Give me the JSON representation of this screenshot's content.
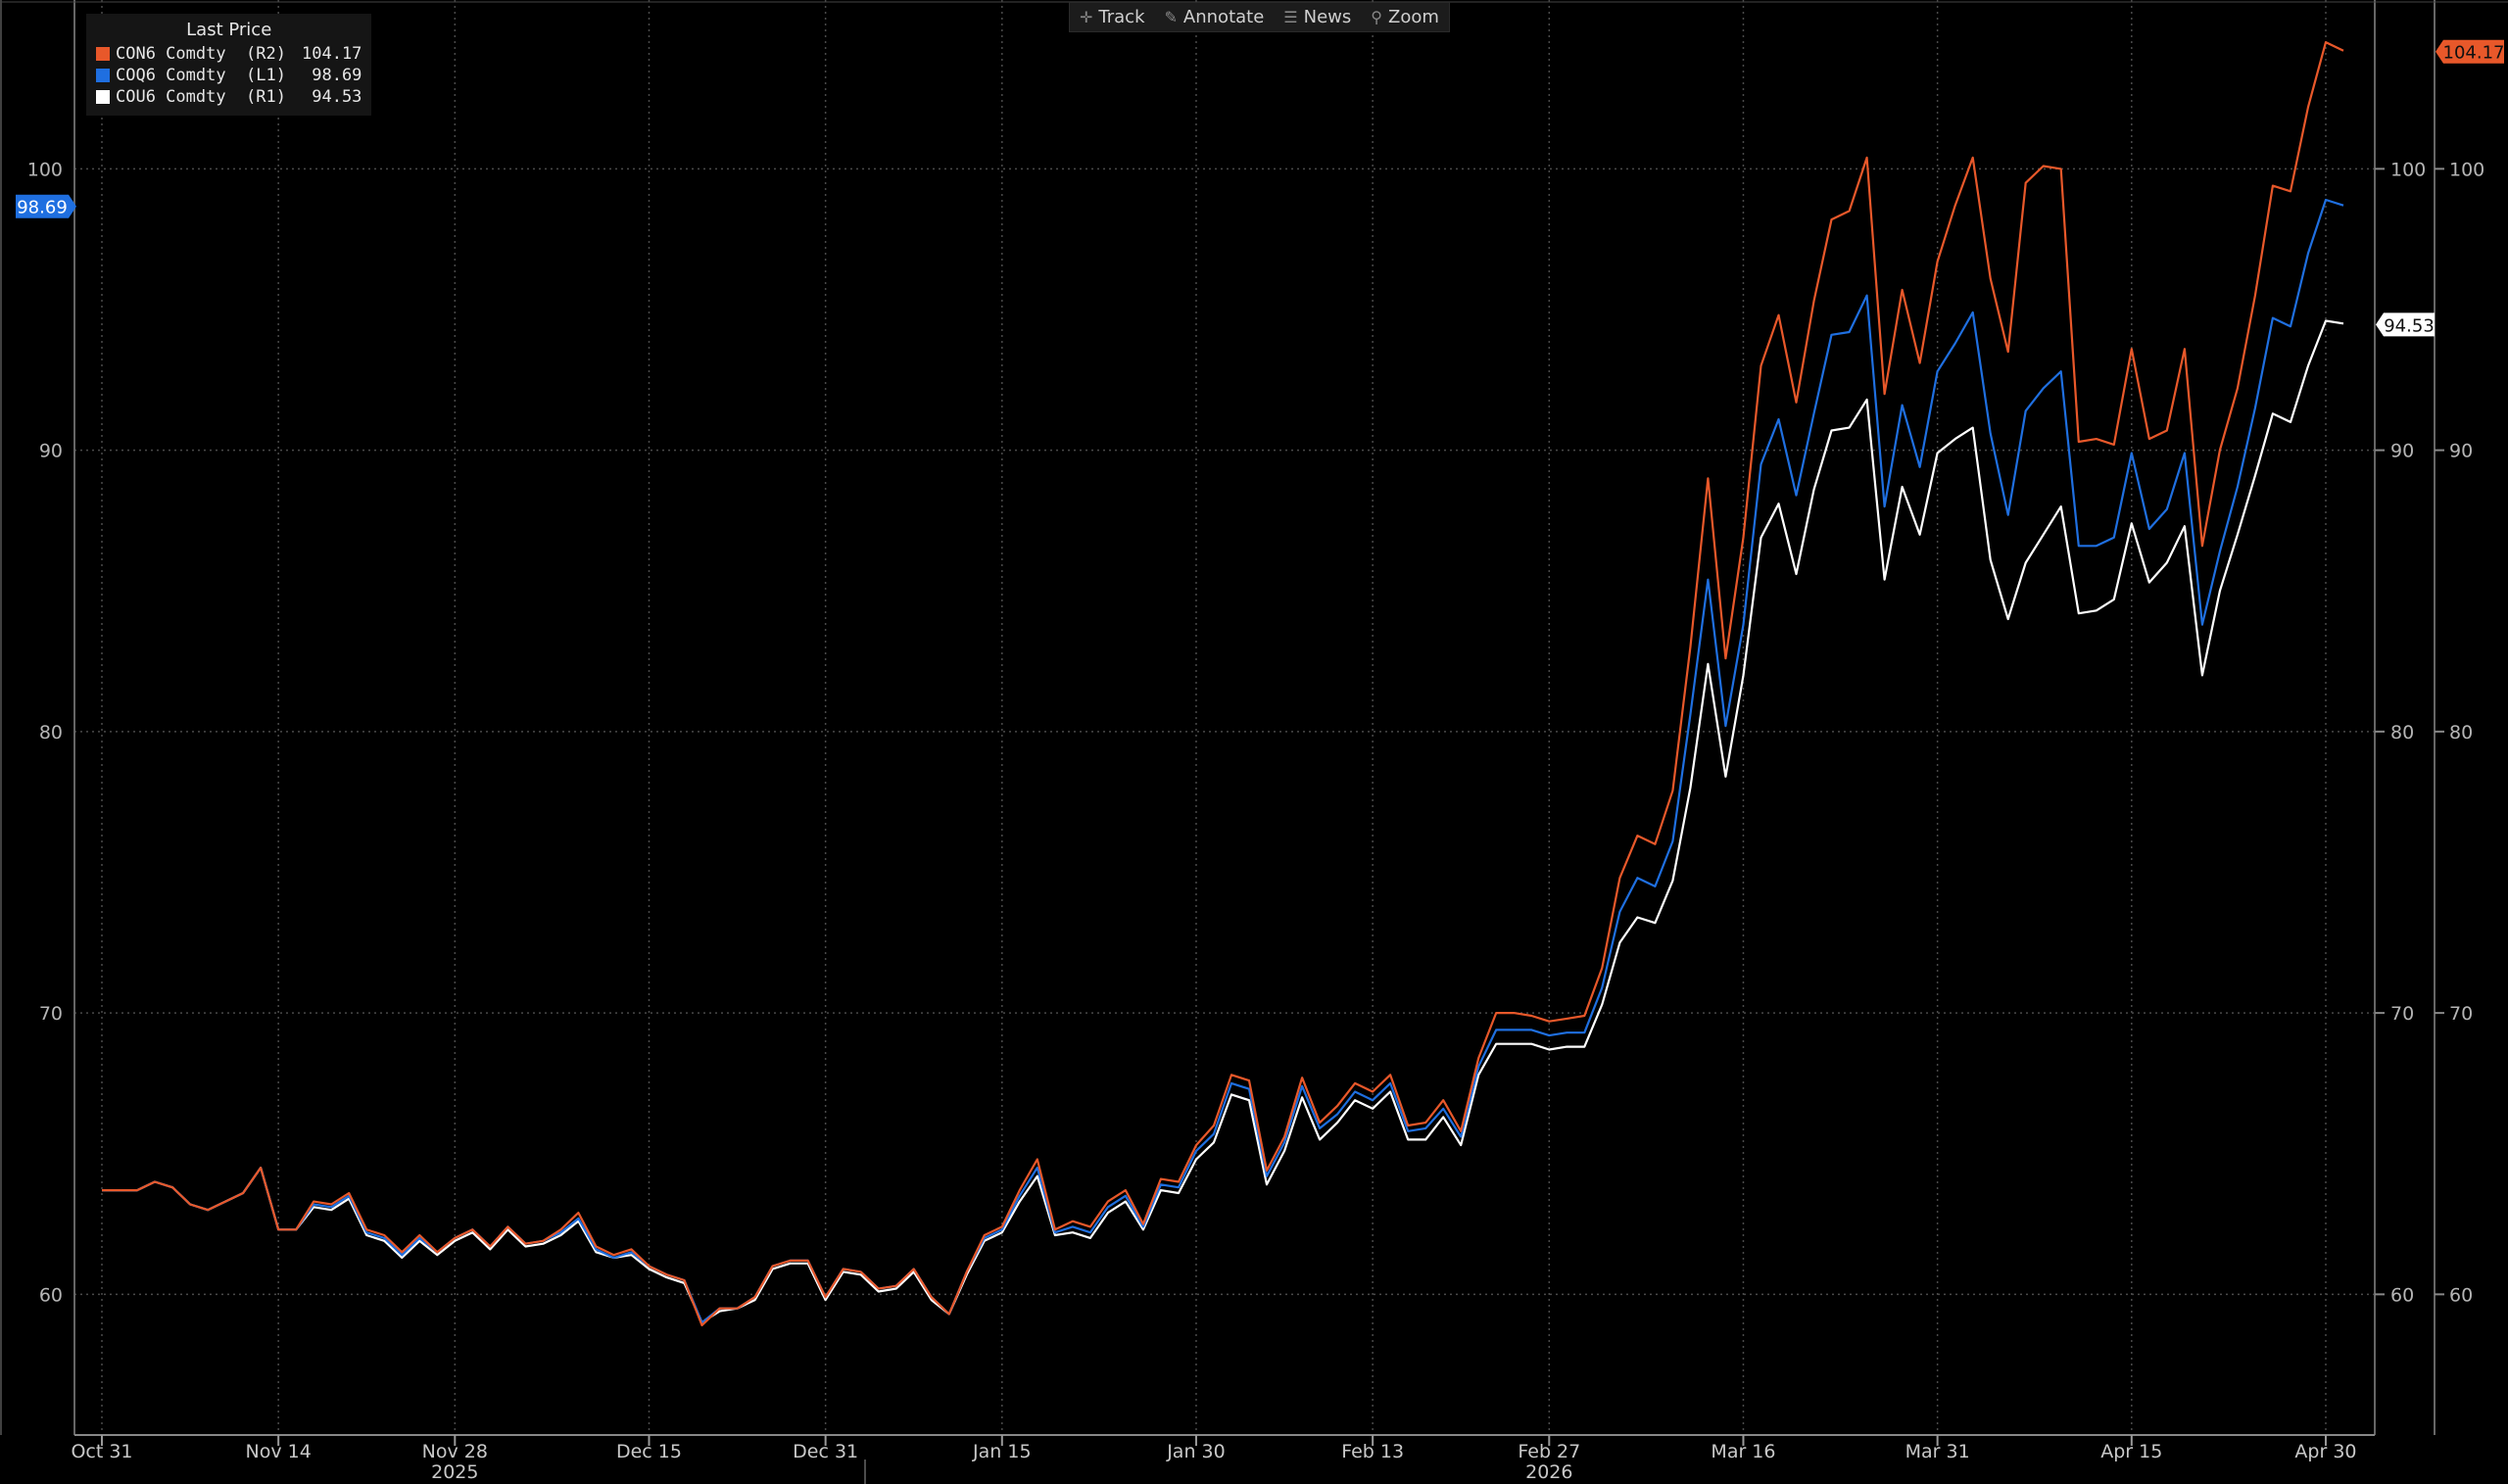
{
  "toolbar": {
    "buttons": [
      {
        "label": "Track",
        "icon": "crosshair-icon"
      },
      {
        "label": "Annotate",
        "icon": "pencil-icon"
      },
      {
        "label": "News",
        "icon": "news-icon"
      },
      {
        "label": "Zoom",
        "icon": "magnifier-icon"
      }
    ]
  },
  "legend": {
    "title": "Last Price",
    "entries": [
      {
        "name": "CON6 Comdty  (R2)",
        "value": "104.17",
        "color": "#e8582a"
      },
      {
        "name": "COQ6 Comdty  (L1)",
        "value": " 98.69",
        "color": "#1f6fe0"
      },
      {
        "name": "COU6 Comdty  (R1)",
        "value": " 94.53",
        "color": "#ffffff"
      }
    ]
  },
  "chart_data": {
    "type": "line",
    "title": "",
    "ylim": [
      55,
      106
    ],
    "yticks": [
      60,
      70,
      80,
      90,
      100
    ],
    "grid": true,
    "legend_position": "top-left",
    "x_ticks": [
      {
        "label": "Oct 31",
        "index": 0
      },
      {
        "label": "Nov 14",
        "index": 10
      },
      {
        "label": "Nov 28",
        "index": 20
      },
      {
        "label": "Dec 15",
        "index": 31
      },
      {
        "label": "Dec 31",
        "index": 41
      },
      {
        "label": "Jan 15",
        "index": 51
      },
      {
        "label": "Jan 30",
        "index": 62
      },
      {
        "label": "Feb 13",
        "index": 72
      },
      {
        "label": "Feb 27",
        "index": 82
      },
      {
        "label": "Mar 16",
        "index": 93
      },
      {
        "label": "Mar 31",
        "index": 104
      },
      {
        "label": "Apr 15",
        "index": 115
      },
      {
        "label": "Apr 30",
        "index": 126
      }
    ],
    "year_labels": [
      {
        "label": "2025",
        "index": 20
      },
      {
        "label": "2026",
        "index": 82
      }
    ],
    "series": [
      {
        "name": "CON6 Comdty",
        "color": "#e8582a",
        "last_label": "104.17",
        "values": [
          63.7,
          63.7,
          63.7,
          64.0,
          63.8,
          63.2,
          63.0,
          63.3,
          63.6,
          64.5,
          62.3,
          62.3,
          63.3,
          63.2,
          63.6,
          62.3,
          62.1,
          61.5,
          62.1,
          61.5,
          62.0,
          62.3,
          61.7,
          62.4,
          61.8,
          61.9,
          62.3,
          62.9,
          61.7,
          61.4,
          61.6,
          61.0,
          60.7,
          60.5,
          58.9,
          59.5,
          59.5,
          59.9,
          61.0,
          61.2,
          61.2,
          59.9,
          60.9,
          60.8,
          60.2,
          60.3,
          60.9,
          59.9,
          59.3,
          60.8,
          62.1,
          62.4,
          63.7,
          64.8,
          62.3,
          62.6,
          62.4,
          63.3,
          63.7,
          62.5,
          64.1,
          64.0,
          65.3,
          66.0,
          67.8,
          67.6,
          64.4,
          65.6,
          67.7,
          66.1,
          66.7,
          67.5,
          67.2,
          67.8,
          66.0,
          66.1,
          66.9,
          65.8,
          68.4,
          70.0,
          70.0,
          69.9,
          69.7,
          69.8,
          69.9,
          71.6,
          74.8,
          76.3,
          76.0,
          77.9,
          83.0,
          89.0,
          82.6,
          86.9,
          93.0,
          94.8,
          91.7,
          95.3,
          98.2,
          98.5,
          100.4,
          92.0,
          95.7,
          93.1,
          96.7,
          98.7,
          100.4,
          96.1,
          93.5,
          99.5,
          100.1,
          100.0,
          90.3,
          90.4,
          90.2,
          93.6,
          90.4,
          90.7,
          93.6,
          86.6,
          90.0,
          92.2,
          95.5,
          99.4,
          99.2,
          102.2,
          104.5,
          104.2
        ]
      },
      {
        "name": "COQ6 Comdty",
        "color": "#1f6fe0",
        "last_label": "98.69",
        "values": [
          63.7,
          63.7,
          63.7,
          64.0,
          63.8,
          63.2,
          63.0,
          63.3,
          63.6,
          64.5,
          62.3,
          62.3,
          63.2,
          63.1,
          63.5,
          62.2,
          62.0,
          61.4,
          62.0,
          61.5,
          62.0,
          62.3,
          61.7,
          62.4,
          61.8,
          61.9,
          62.2,
          62.7,
          61.6,
          61.3,
          61.5,
          61.0,
          60.7,
          60.5,
          59.0,
          59.5,
          59.5,
          59.9,
          61.0,
          61.2,
          61.2,
          59.9,
          60.9,
          60.8,
          60.2,
          60.3,
          60.9,
          59.9,
          59.3,
          60.8,
          62.0,
          62.3,
          63.5,
          64.5,
          62.2,
          62.4,
          62.2,
          63.1,
          63.5,
          62.4,
          63.9,
          63.8,
          65.1,
          65.7,
          67.5,
          67.3,
          64.2,
          65.4,
          67.4,
          65.9,
          66.4,
          67.2,
          66.9,
          67.5,
          65.8,
          65.9,
          66.6,
          65.6,
          68.1,
          69.4,
          69.4,
          69.4,
          69.2,
          69.3,
          69.3,
          70.9,
          73.6,
          74.8,
          74.5,
          76.1,
          80.6,
          85.4,
          80.2,
          83.8,
          89.5,
          91.1,
          88.4,
          91.3,
          94.1,
          94.2,
          95.5,
          88.0,
          91.6,
          89.4,
          92.8,
          93.8,
          94.9,
          90.6,
          87.7,
          91.4,
          92.2,
          92.8,
          86.6,
          86.6,
          86.9,
          89.9,
          87.2,
          87.9,
          89.9,
          83.8,
          86.4,
          88.7,
          91.5,
          94.7,
          94.4,
          97.0,
          98.9,
          98.7
        ]
      },
      {
        "name": "COU6 Comdty",
        "color": "#ffffff",
        "last_label": "94.53",
        "values": [
          63.7,
          63.7,
          63.7,
          64.0,
          63.8,
          63.2,
          63.0,
          63.3,
          63.6,
          64.5,
          62.3,
          62.3,
          63.1,
          63.0,
          63.4,
          62.1,
          61.9,
          61.3,
          61.9,
          61.4,
          61.9,
          62.2,
          61.6,
          62.3,
          61.7,
          61.8,
          62.1,
          62.6,
          61.5,
          61.3,
          61.4,
          60.9,
          60.6,
          60.4,
          59.0,
          59.4,
          59.5,
          59.8,
          60.9,
          61.1,
          61.1,
          59.8,
          60.8,
          60.7,
          60.1,
          60.2,
          60.8,
          59.8,
          59.3,
          60.7,
          61.9,
          62.2,
          63.3,
          64.2,
          62.1,
          62.2,
          62.0,
          62.9,
          63.3,
          62.3,
          63.7,
          63.6,
          64.8,
          65.4,
          67.1,
          66.9,
          63.9,
          65.1,
          67.0,
          65.5,
          66.1,
          66.9,
          66.6,
          67.2,
          65.5,
          65.5,
          66.3,
          65.3,
          67.8,
          68.9,
          68.9,
          68.9,
          68.7,
          68.8,
          68.8,
          70.3,
          72.5,
          73.4,
          73.2,
          74.7,
          78.0,
          82.4,
          78.4,
          82.0,
          86.9,
          88.1,
          85.6,
          88.6,
          90.7,
          90.8,
          91.8,
          85.4,
          88.7,
          87.0,
          89.9,
          90.4,
          90.8,
          86.1,
          84.0,
          86.0,
          87.0,
          88.0,
          84.2,
          84.3,
          84.7,
          87.4,
          85.3,
          86.0,
          87.3,
          82.0,
          85.0,
          87.0,
          89.1,
          91.3,
          91.0,
          93.0,
          94.6,
          94.5
        ]
      }
    ]
  }
}
